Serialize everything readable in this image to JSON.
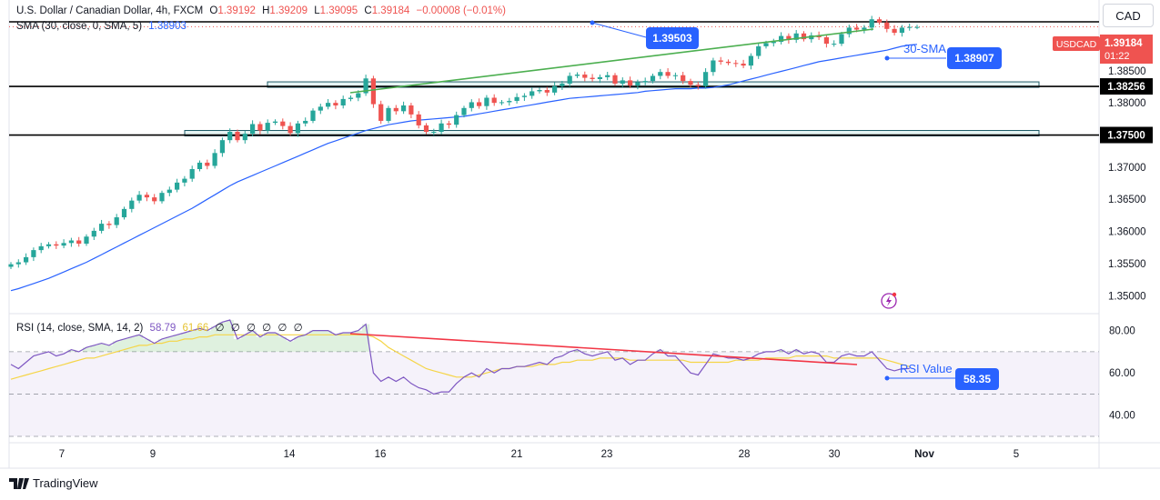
{
  "header": {
    "symbol": "U.S. Dollar / Canadian Dollar, 4h, FXCM",
    "o_label": "O",
    "o_val": "1.39192",
    "h_label": "H",
    "h_val": "1.39209",
    "l_label": "L",
    "l_val": "1.39095",
    "c_label": "C",
    "c_val": "1.39184",
    "chg": "−0.00008 (−0.01%)",
    "sma_label": "SMA (30, close, 0, SMA, 5)",
    "sma_val": "1.38903",
    "rsi_label": "RSI (14, close, SMA, 14, 2)",
    "rsi_val": "58.79",
    "rsi_ma_val": "61.66",
    "rsi_extra": "∅ ∅ ∅ ∅ ∅ ∅"
  },
  "currency_button": "CAD",
  "price_tag": {
    "symbol": "USDCAD",
    "price": "1.39184",
    "countdown": "01:22"
  },
  "annotations": {
    "high": "1.39503",
    "sma_label": "30-SMA",
    "sma_value": "1.38907",
    "level1": "1.38256",
    "level2": "1.37500",
    "rsi_label": "RSI Value",
    "rsi_value": "58.35"
  },
  "branding": "TradingView",
  "colors": {
    "up": "#26a69a",
    "down": "#ef5350",
    "sma": "#2962ff",
    "rsi": "#7e57c2",
    "rsi_ma": "#f5d547",
    "trend_green": "#4caf50",
    "trend_red": "#f23645"
  },
  "chart_data": {
    "type": "candlestick",
    "price_axis": {
      "ticks": [
        "1.35000",
        "1.35500",
        "1.36000",
        "1.36500",
        "1.37000",
        "1.37500",
        "1.38000",
        "1.38256",
        "1.38500"
      ],
      "range": [
        1.3475,
        1.396
      ]
    },
    "rsi_axis": {
      "ticks": [
        "40.00",
        "60.00",
        "80.00"
      ],
      "range": [
        27,
        88
      ],
      "bands": [
        30,
        50,
        70
      ]
    },
    "x_ticks": [
      "7",
      "9",
      "14",
      "16",
      "21",
      "23",
      "28",
      "30",
      "Nov",
      "5"
    ],
    "close": [
      1.3549,
      1.3552,
      1.356,
      1.3571,
      1.3577,
      1.358,
      1.3578,
      1.3582,
      1.3586,
      1.3581,
      1.3592,
      1.3601,
      1.3612,
      1.361,
      1.3622,
      1.3635,
      1.3648,
      1.3657,
      1.3653,
      1.3647,
      1.366,
      1.3665,
      1.3676,
      1.3682,
      1.3697,
      1.3707,
      1.3702,
      1.3722,
      1.3742,
      1.3755,
      1.3742,
      1.3752,
      1.3767,
      1.3757,
      1.3769,
      1.3771,
      1.3764,
      1.3753,
      1.3768,
      1.3772,
      1.3788,
      1.3794,
      1.38,
      1.3796,
      1.3806,
      1.3808,
      1.3815,
      1.3838,
      1.3798,
      1.3772,
      1.3792,
      1.3787,
      1.3796,
      1.3782,
      1.3765,
      1.3755,
      1.3755,
      1.3768,
      1.3766,
      1.3781,
      1.3792,
      1.3801,
      1.3795,
      1.3808,
      1.38,
      1.3801,
      1.3803,
      1.3809,
      1.3811,
      1.3818,
      1.382,
      1.3816,
      1.3826,
      1.383,
      1.3842,
      1.3844,
      1.3839,
      1.3837,
      1.384,
      1.3843,
      1.383,
      1.3835,
      1.3827,
      1.3832,
      1.3834,
      1.3842,
      1.3848,
      1.3842,
      1.3843,
      1.3834,
      1.3828,
      1.3826,
      1.3848,
      1.3866,
      1.3864,
      1.3862,
      1.3861,
      1.3858,
      1.3873,
      1.3888,
      1.3893,
      1.3895,
      1.3904,
      1.3898,
      1.3908,
      1.3899,
      1.3905,
      1.3902,
      1.3892,
      1.3892,
      1.3907,
      1.3917,
      1.3914,
      1.3917,
      1.393,
      1.3925,
      1.3915,
      1.3909,
      1.3917,
      1.3918,
      1.3918
    ],
    "sma30": [
      1.3508,
      1.3511,
      1.3515,
      1.3519,
      1.3523,
      1.3527,
      1.3532,
      1.3537,
      1.3542,
      1.3547,
      1.3552,
      1.3558,
      1.3564,
      1.357,
      1.3576,
      1.3582,
      1.3588,
      1.3594,
      1.36,
      1.3606,
      1.3612,
      1.3618,
      1.3624,
      1.363,
      1.3636,
      1.3643,
      1.365,
      1.3657,
      1.3664,
      1.3671,
      1.3677,
      1.3682,
      1.3687,
      1.3692,
      1.3697,
      1.3702,
      1.3707,
      1.3712,
      1.3717,
      1.3722,
      1.3727,
      1.3732,
      1.3737,
      1.3741,
      1.3745,
      1.3749,
      1.3753,
      1.3757,
      1.376,
      1.3763,
      1.3766,
      1.3768,
      1.377,
      1.3772,
      1.3773,
      1.3774,
      1.3775,
      1.3776,
      1.3777,
      1.3778,
      1.3779,
      1.3781,
      1.3783,
      1.3785,
      1.3787,
      1.3789,
      1.3791,
      1.3793,
      1.3795,
      1.3797,
      1.3799,
      1.3801,
      1.3803,
      1.3805,
      1.3807,
      1.3808,
      1.3809,
      1.381,
      1.3811,
      1.3812,
      1.3813,
      1.3814,
      1.3815,
      1.3816,
      1.3818,
      1.3819,
      1.382,
      1.3821,
      1.3822,
      1.3822,
      1.3822,
      1.3823,
      1.3823,
      1.3824,
      1.3826,
      1.3828,
      1.3831,
      1.3834,
      1.3837,
      1.384,
      1.3843,
      1.3846,
      1.3849,
      1.3852,
      1.3855,
      1.3858,
      1.3861,
      1.3864,
      1.3866,
      1.3868,
      1.387,
      1.3872,
      1.3874,
      1.3876,
      1.3878,
      1.388,
      1.3882,
      1.3885,
      1.3888,
      1.389,
      1.3891
    ],
    "rsi": [
      64,
      62,
      65,
      68,
      69,
      70,
      68,
      69,
      71,
      70,
      72,
      73,
      74,
      73,
      75,
      76,
      77,
      78,
      76,
      74,
      76,
      77,
      78,
      79,
      80,
      81,
      80,
      82,
      84,
      85,
      76,
      78,
      80,
      77,
      79,
      79,
      77,
      75,
      77,
      78,
      80,
      80,
      80,
      78,
      79,
      79,
      80,
      83,
      60,
      56,
      58,
      56,
      58,
      55,
      53,
      52,
      50,
      51,
      51,
      55,
      58,
      60,
      58,
      62,
      60,
      62,
      62,
      63,
      63,
      64,
      65,
      64,
      67,
      68,
      70,
      71,
      69,
      68,
      69,
      70,
      66,
      67,
      64,
      66,
      66,
      69,
      71,
      68,
      68,
      64,
      60,
      59,
      64,
      69,
      68,
      67,
      67,
      66,
      67,
      69,
      70,
      70,
      71,
      69,
      71,
      69,
      70,
      69,
      65,
      65,
      68,
      69,
      68,
      68,
      70,
      66,
      62,
      61,
      62,
      62
    ],
    "rsi_ma": [
      57,
      58,
      59,
      60,
      61,
      62,
      63,
      64,
      65,
      66,
      67,
      67,
      68,
      69,
      70,
      71,
      72,
      73,
      73,
      74,
      74,
      75,
      75,
      76,
      76,
      77,
      77,
      78,
      78,
      78,
      78,
      78,
      78,
      78,
      78,
      78,
      78,
      78,
      78,
      78,
      78,
      78,
      78,
      78,
      78,
      78,
      78,
      78,
      77,
      75,
      72,
      70,
      68,
      66,
      64,
      62,
      61,
      60,
      59,
      58,
      58,
      58,
      59,
      60,
      61,
      62,
      62,
      63,
      63,
      63,
      64,
      64,
      64,
      65,
      65,
      66,
      66,
      66,
      67,
      67,
      67,
      67,
      66,
      66,
      66,
      66,
      66,
      66,
      66,
      66,
      65,
      65,
      65,
      65,
      65,
      65,
      66,
      66,
      66,
      66,
      67,
      67,
      67,
      67,
      68,
      68,
      68,
      68,
      68,
      67,
      67,
      67,
      67,
      67,
      67,
      67,
      66,
      65,
      64,
      63
    ]
  }
}
